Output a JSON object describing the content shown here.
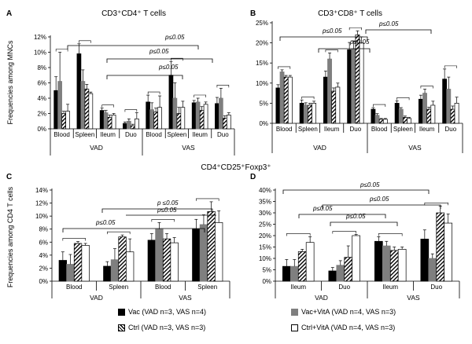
{
  "figure": {
    "legend": [
      {
        "key": "vac",
        "label": "Vac  (VAD n=3, VAS n=4)"
      },
      {
        "key": "vacvita",
        "label": "Vac+VitA (VAD n=4, VAS n=3)"
      },
      {
        "key": "ctrl",
        "label": "Ctrl (VAD n=3, VAS n=3)"
      },
      {
        "key": "ctrlvita",
        "label": "Ctrl+VitA (VAD n=4, VAS n=3)"
      }
    ],
    "colors": {
      "vac": "#000000",
      "vacvita": "#7f7f7f",
      "ctrl": "hatched",
      "ctrlvita": "#ffffff"
    }
  },
  "chart_data": [
    {
      "panel": "A",
      "type": "bar",
      "title": "CD3⁺CD4⁺ T cells",
      "ylabel": "Frequencies among MNCs",
      "ylim": [
        0,
        12
      ],
      "yticks": [
        "0%",
        "2%",
        "4%",
        "6%",
        "8%",
        "10%",
        "12%"
      ],
      "categories": [
        "Blood",
        "Spleen",
        "Ileum",
        "Duo",
        "Blood",
        "Spleen",
        "Ileum",
        "Duo"
      ],
      "groups": [
        "VAD",
        "VAS"
      ],
      "series": [
        {
          "name": "Vac",
          "values": [
            5.0,
            9.8,
            2.4,
            0.7,
            3.5,
            7.0,
            3.4,
            3.3
          ],
          "errors": [
            1.8,
            1.3,
            0.3,
            0.2,
            0.9,
            1.8,
            0.3,
            0.8
          ]
        },
        {
          "name": "Vac+VitA",
          "values": [
            6.2,
            6.2,
            2.1,
            1.0,
            2.5,
            4.0,
            3.5,
            4.0
          ],
          "errors": [
            3.8,
            1.5,
            0.3,
            0.3,
            0.9,
            2.0,
            0.5,
            1.3
          ]
        },
        {
          "name": "Ctrl",
          "values": [
            2.0,
            5.2,
            1.5,
            0.4,
            2.2,
            2.0,
            2.4,
            1.4
          ],
          "errors": [
            0.3,
            0.6,
            0.3,
            0.2,
            0.5,
            0.8,
            0.5,
            0.3
          ]
        },
        {
          "name": "Ctrl+VitA",
          "values": [
            2.3,
            4.6,
            1.8,
            1.3,
            2.8,
            2.8,
            3.2,
            1.8
          ],
          "errors": [
            0.9,
            0.2,
            0.2,
            0.8,
            1.5,
            0.8,
            0.3,
            0.3
          ]
        }
      ],
      "annotations": [
        "p≤0.05",
        "p≤0.05",
        "p≤0.05"
      ]
    },
    {
      "panel": "B",
      "type": "bar",
      "title": "CD3⁺CD8⁺ T cells",
      "ylabel": "",
      "ylim": [
        0,
        25
      ],
      "yticks": [
        "0%",
        "5%",
        "10%",
        "15%",
        "20%",
        "25%"
      ],
      "categories": [
        "Blood",
        "Spleen",
        "Ileum",
        "Duo",
        "Blood",
        "Spleen",
        "Ileum",
        "Duo"
      ],
      "groups": [
        "VAD",
        "VAS"
      ],
      "series": [
        {
          "name": "Vac",
          "values": [
            8.8,
            5.0,
            11.5,
            18.3,
            3.5,
            5.0,
            6.0,
            11.0
          ],
          "errors": [
            0.8,
            0.8,
            1.5,
            1.8,
            0.4,
            0.6,
            1.0,
            2.5
          ]
        },
        {
          "name": "Vac+VitA",
          "values": [
            12.8,
            4.5,
            16.0,
            18.5,
            2.0,
            3.5,
            7.5,
            8.5
          ],
          "errors": [
            0.5,
            0.6,
            1.5,
            2.0,
            0.4,
            0.4,
            1.0,
            3.0
          ]
        },
        {
          "name": "Ctrl",
          "values": [
            11.5,
            4.5,
            8.0,
            22.0,
            1.0,
            1.5,
            3.5,
            3.5
          ],
          "errors": [
            0.4,
            0.5,
            0.8,
            1.0,
            0.2,
            0.3,
            0.5,
            0.8
          ]
        },
        {
          "name": "Ctrl+VitA",
          "values": [
            11.5,
            5.0,
            9.0,
            20.0,
            1.0,
            1.2,
            4.5,
            5.0
          ],
          "errors": [
            0.4,
            0.5,
            1.0,
            1.5,
            0.2,
            0.3,
            1.0,
            1.5
          ]
        }
      ],
      "annotations": [
        "p≤0.05",
        "p≤0.05",
        "p≤0.05"
      ]
    },
    {
      "panel": "C",
      "type": "bar",
      "title": "CD4⁺CD25⁺Foxp3⁺",
      "ylabel": "Frequencies among CD4 T cells",
      "ylim": [
        0,
        14
      ],
      "yticks": [
        "0%",
        "2%",
        "4%",
        "6%",
        "8%",
        "10%",
        "12%",
        "14%"
      ],
      "categories": [
        "Blood",
        "Spleen",
        "Blood",
        "Spleen"
      ],
      "groups": [
        "VAD",
        "VAS"
      ],
      "series": [
        {
          "name": "Vac",
          "values": [
            3.2,
            2.3,
            6.3,
            8.0
          ],
          "errors": [
            1.3,
            0.7,
            1.0,
            1.5
          ]
        },
        {
          "name": "Vac+VitA",
          "values": [
            2.6,
            3.3,
            8.0,
            8.7
          ],
          "errors": [
            1.5,
            1.7,
            1.0,
            1.5
          ]
        },
        {
          "name": "Ctrl",
          "values": [
            5.8,
            6.8,
            6.5,
            10.7
          ],
          "errors": [
            0.3,
            0.3,
            0.8,
            1.5
          ]
        },
        {
          "name": "Ctrl+VitA",
          "values": [
            5.5,
            4.5,
            5.9,
            9.0
          ],
          "errors": [
            0.3,
            2.0,
            0.8,
            1.8
          ]
        }
      ],
      "annotations": [
        "p≤0.05",
        "p ≤0.05",
        "p≤0.05"
      ]
    },
    {
      "panel": "D",
      "type": "bar",
      "title": "",
      "ylabel": "",
      "ylim": [
        0,
        40
      ],
      "yticks": [
        "0%",
        "5%",
        "10%",
        "15%",
        "20%",
        "25%",
        "30%",
        "35%",
        "40%"
      ],
      "categories": [
        "Ileum",
        "Duo",
        "Ileum",
        "Duo"
      ],
      "groups": [
        "VAD",
        "VAS"
      ],
      "series": [
        {
          "name": "Vac",
          "values": [
            6.5,
            4.5,
            17.5,
            18.5
          ],
          "errors": [
            3.0,
            1.5,
            2.0,
            4.0
          ]
        },
        {
          "name": "Vac+VitA",
          "values": [
            6.5,
            7.0,
            15.5,
            10.0
          ],
          "errors": [
            3.0,
            2.0,
            2.0,
            2.0
          ]
        },
        {
          "name": "Ctrl",
          "values": [
            13.0,
            10.5,
            13.5,
            30.0
          ],
          "errors": [
            1.0,
            5.0,
            1.5,
            3.0
          ]
        },
        {
          "name": "Ctrl+VitA",
          "values": [
            17.0,
            20.0,
            14.0,
            25.5
          ],
          "errors": [
            2.5,
            0.5,
            1.0,
            4.0
          ]
        }
      ],
      "annotations": [
        "p≤0.05",
        "p≤0.05",
        "p≤0.05",
        "p≤0.05"
      ]
    }
  ]
}
